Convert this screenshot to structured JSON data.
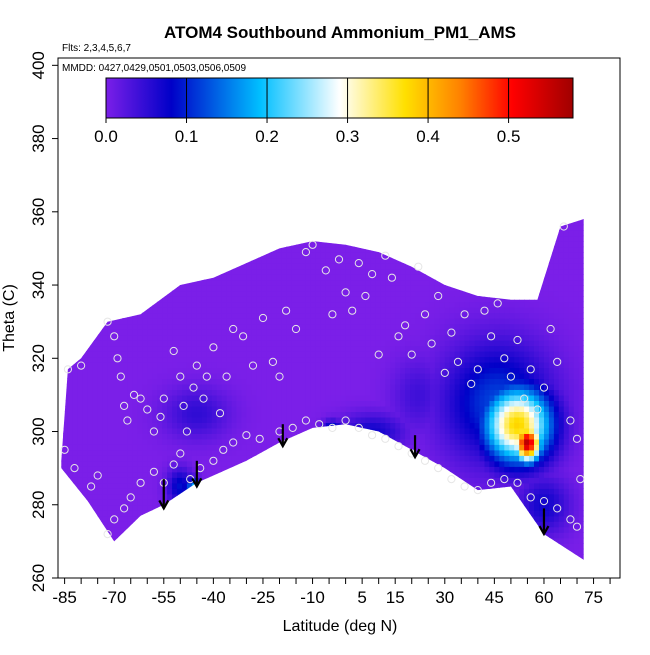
{
  "chart_data": {
    "type": "heatmap",
    "title": "ATOM4 Southbound Ammonium_PM1_AMS",
    "annotations": [
      "Flts: 2,3,4,5,6,7",
      "MMDD: 0427,0429,0501,0503,0506,0509"
    ],
    "xlabel": "Latitude (deg N)",
    "ylabel": "Theta (C)",
    "xlim": [
      -87,
      83
    ],
    "ylim": [
      260,
      402
    ],
    "x_ticks": [
      -85,
      -80,
      -75,
      -70,
      -65,
      -60,
      -55,
      -50,
      -45,
      -40,
      -35,
      -30,
      -25,
      -20,
      -15,
      -10,
      -5,
      0,
      5,
      10,
      15,
      20,
      25,
      30,
      35,
      40,
      45,
      50,
      55,
      60,
      65,
      70,
      75,
      80
    ],
    "x_tick_labels": [
      "-85",
      "",
      "",
      "-70",
      "",
      "",
      "-55",
      "",
      "",
      "-40",
      "",
      "",
      "-25",
      "",
      "",
      "-10",
      "",
      "",
      "5",
      "",
      "15",
      "",
      "",
      "30",
      "",
      "",
      "45",
      "",
      "",
      "60",
      "",
      "",
      "75",
      ""
    ],
    "y_ticks": [
      260,
      280,
      300,
      320,
      340,
      360,
      380,
      400
    ],
    "y_tick_labels": [
      "260",
      "280",
      "300",
      "320",
      "340",
      "360",
      "380",
      "400"
    ],
    "colorbar": {
      "range": [
        0.0,
        0.58
      ],
      "ticks": [
        0.0,
        0.1,
        0.2,
        0.3,
        0.4,
        0.5
      ],
      "tick_labels": [
        "0.0",
        "0.1",
        "0.2",
        "0.3",
        "0.4",
        "0.5"
      ],
      "colors": [
        "#7b1fe8",
        "#0000c8",
        "#00bfff",
        "#ffffff",
        "#ffe000",
        "#ff8000",
        "#ff0000",
        "#a00000"
      ],
      "color_stops": [
        0.0,
        0.14,
        0.33,
        0.5,
        0.64,
        0.76,
        0.87,
        1.0
      ]
    },
    "domain_top": [
      [
        -86,
        292
      ],
      [
        -84,
        317
      ],
      [
        -80,
        320
      ],
      [
        -72,
        330
      ],
      [
        -62,
        332
      ],
      [
        -50,
        340
      ],
      [
        -40,
        342
      ],
      [
        -30,
        346
      ],
      [
        -20,
        350
      ],
      [
        -10,
        352
      ],
      [
        0,
        351
      ],
      [
        10,
        349
      ],
      [
        20,
        345
      ],
      [
        30,
        340
      ],
      [
        40,
        337
      ],
      [
        50,
        336
      ],
      [
        58,
        336
      ],
      [
        65,
        356
      ],
      [
        72,
        358
      ]
    ],
    "domain_bottom": [
      [
        72,
        265
      ],
      [
        60,
        272
      ],
      [
        50,
        285
      ],
      [
        40,
        284
      ],
      [
        30,
        290
      ],
      [
        20,
        295
      ],
      [
        10,
        300
      ],
      [
        0,
        302
      ],
      [
        -10,
        301
      ],
      [
        -20,
        297
      ],
      [
        -30,
        292
      ],
      [
        -40,
        288
      ],
      [
        -45,
        286
      ],
      [
        -50,
        283
      ],
      [
        -55,
        280
      ],
      [
        -62,
        277
      ],
      [
        -70,
        270
      ],
      [
        -78,
        281
      ],
      [
        -86,
        290
      ]
    ],
    "features": [
      {
        "x": 55,
        "y": 297,
        "value": 0.56,
        "sx": 4,
        "sy": 5
      },
      {
        "x": 52,
        "y": 302,
        "value": 0.38,
        "sx": 10,
        "sy": 10
      },
      {
        "x": 46,
        "y": 308,
        "value": 0.12,
        "sx": 16,
        "sy": 16
      },
      {
        "x": -46,
        "y": 284,
        "value": 0.22,
        "sx": 2,
        "sy": 3
      },
      {
        "x": -50,
        "y": 285,
        "value": 0.09,
        "sx": 4,
        "sy": 5
      },
      {
        "x": -4,
        "y": 300,
        "value": 0.12,
        "sx": 3,
        "sy": 3
      },
      {
        "x": 8,
        "y": 300,
        "value": 0.07,
        "sx": 10,
        "sy": 5
      },
      {
        "x": -45,
        "y": 305,
        "value": 0.05,
        "sx": 10,
        "sy": 7
      },
      {
        "x": 22,
        "y": 310,
        "value": 0.04,
        "sx": 8,
        "sy": 10
      },
      {
        "x": 60,
        "y": 280,
        "value": 0.07,
        "sx": 8,
        "sy": 8
      }
    ],
    "observations": [
      [
        -84,
        317
      ],
      [
        -80,
        318
      ],
      [
        -72,
        330
      ],
      [
        -70,
        326
      ],
      [
        -69,
        320
      ],
      [
        -68,
        315
      ],
      [
        -67,
        307
      ],
      [
        -66,
        303
      ],
      [
        -64,
        310
      ],
      [
        -62,
        309
      ],
      [
        -60,
        306
      ],
      [
        -58,
        300
      ],
      [
        -56,
        304
      ],
      [
        -55,
        309
      ],
      [
        -52,
        322
      ],
      [
        -50,
        315
      ],
      [
        -49,
        307
      ],
      [
        -48,
        300
      ],
      [
        -46,
        312
      ],
      [
        -45,
        318
      ],
      [
        -43,
        309
      ],
      [
        -42,
        315
      ],
      [
        -40,
        323
      ],
      [
        -38,
        305
      ],
      [
        -36,
        315
      ],
      [
        -34,
        328
      ],
      [
        -31,
        326
      ],
      [
        -28,
        318
      ],
      [
        -25,
        331
      ],
      [
        -22,
        319
      ],
      [
        -20,
        315
      ],
      [
        -18,
        333
      ],
      [
        -15,
        328
      ],
      [
        -12,
        349
      ],
      [
        -10,
        351
      ],
      [
        -6,
        344
      ],
      [
        -4,
        332
      ],
      [
        -2,
        347
      ],
      [
        0,
        338
      ],
      [
        2,
        333
      ],
      [
        4,
        346
      ],
      [
        6,
        337
      ],
      [
        8,
        343
      ],
      [
        10,
        321
      ],
      [
        12,
        348
      ],
      [
        14,
        342
      ],
      [
        16,
        326
      ],
      [
        18,
        329
      ],
      [
        20,
        321
      ],
      [
        22,
        345
      ],
      [
        24,
        332
      ],
      [
        26,
        324
      ],
      [
        28,
        337
      ],
      [
        30,
        316
      ],
      [
        32,
        327
      ],
      [
        34,
        319
      ],
      [
        36,
        332
      ],
      [
        38,
        313
      ],
      [
        40,
        317
      ],
      [
        42,
        333
      ],
      [
        44,
        326
      ],
      [
        46,
        335
      ],
      [
        48,
        320
      ],
      [
        50,
        315
      ],
      [
        52,
        325
      ],
      [
        54,
        309
      ],
      [
        56,
        317
      ],
      [
        58,
        306
      ],
      [
        60,
        312
      ],
      [
        62,
        328
      ],
      [
        64,
        319
      ],
      [
        66,
        356
      ],
      [
        68,
        303
      ],
      [
        70,
        298
      ],
      [
        71,
        287
      ],
      [
        -85,
        295
      ],
      [
        -82,
        290
      ],
      [
        -77,
        285
      ],
      [
        -75,
        288
      ],
      [
        -72,
        272
      ],
      [
        -70,
        276
      ],
      [
        -67,
        279
      ],
      [
        -65,
        282
      ],
      [
        -62,
        286
      ],
      [
        -58,
        289
      ],
      [
        -55,
        286
      ],
      [
        -52,
        291
      ],
      [
        -50,
        294
      ],
      [
        -47,
        287
      ],
      [
        -44,
        290
      ],
      [
        -40,
        292
      ],
      [
        -37,
        295
      ],
      [
        -34,
        297
      ],
      [
        -30,
        299
      ],
      [
        -26,
        298
      ],
      [
        -20,
        300
      ],
      [
        -16,
        301
      ],
      [
        -12,
        303
      ],
      [
        -8,
        302
      ],
      [
        -4,
        301
      ],
      [
        0,
        303
      ],
      [
        4,
        301
      ],
      [
        8,
        299
      ],
      [
        12,
        298
      ],
      [
        16,
        296
      ],
      [
        20,
        294
      ],
      [
        24,
        292
      ],
      [
        28,
        290
      ],
      [
        32,
        287
      ],
      [
        36,
        285
      ],
      [
        40,
        284
      ],
      [
        44,
        286
      ],
      [
        48,
        287
      ],
      [
        52,
        286
      ],
      [
        56,
        282
      ],
      [
        60,
        281
      ],
      [
        64,
        279
      ],
      [
        68,
        276
      ],
      [
        70,
        274
      ]
    ],
    "arrows": [
      {
        "x": -55,
        "y_top": 287,
        "y_tip": 279
      },
      {
        "x": -45,
        "y_top": 292,
        "y_tip": 285
      },
      {
        "x": -19,
        "y_top": 302,
        "y_tip": 296
      },
      {
        "x": 21,
        "y_top": 299,
        "y_tip": 293
      },
      {
        "x": 60,
        "y_top": 279,
        "y_tip": 272
      }
    ]
  }
}
